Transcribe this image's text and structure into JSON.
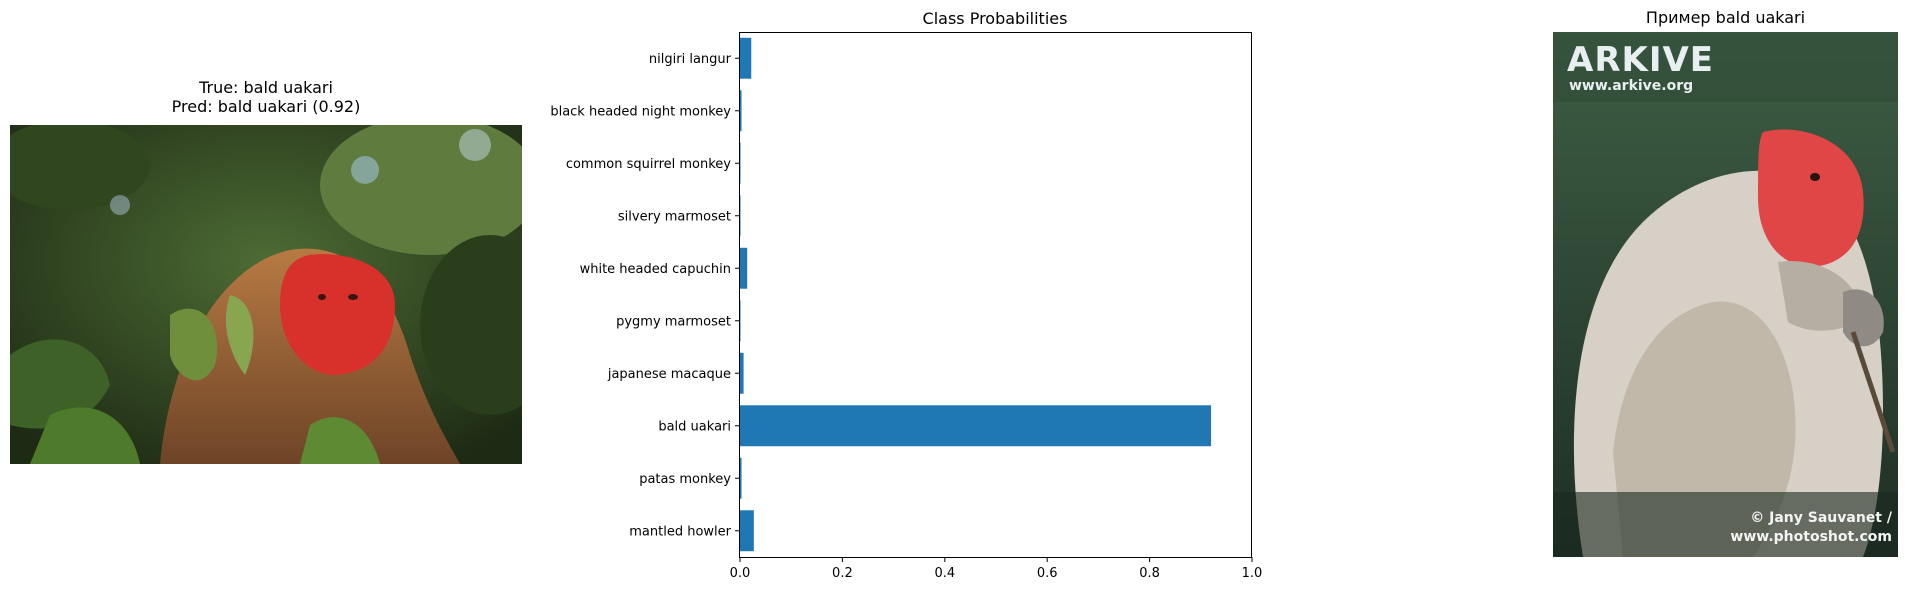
{
  "left_panel": {
    "title_line1": "True: bald uakari",
    "title_line2": "Pred: bald uakari (0.92)",
    "image_subject": "bald uakari monkey with red face among green leaves"
  },
  "right_panel": {
    "title": "Пример bald uakari",
    "image_subject": "bald uakari monkey with pale fur and red face",
    "watermark_brand": "ARKIVE",
    "watermark_url": "www.arkive.org",
    "credit_line1": "© Jany Sauvanet /",
    "credit_line2": "www.photoshot.com"
  },
  "colors": {
    "bar": "#1f77b4",
    "axis": "#000000"
  },
  "chart_data": {
    "type": "bar",
    "orientation": "horizontal",
    "title": "Class Probabilities",
    "categories": [
      "nilgiri langur",
      "black headed night monkey",
      "common squirrel monkey",
      "silvery marmoset",
      "white headed capuchin",
      "pygmy marmoset",
      "japanese macaque",
      "bald uakari",
      "patas monkey",
      "mantled howler"
    ],
    "values": [
      0.022,
      0.003,
      0.001,
      0.001,
      0.014,
      0.001,
      0.007,
      0.92,
      0.003,
      0.027
    ],
    "xlim": [
      0,
      1.0
    ],
    "xticks": [
      "0.0",
      "0.2",
      "0.4",
      "0.6",
      "0.8",
      "1.0"
    ],
    "xlabel": "",
    "ylabel": "",
    "grid": false
  }
}
